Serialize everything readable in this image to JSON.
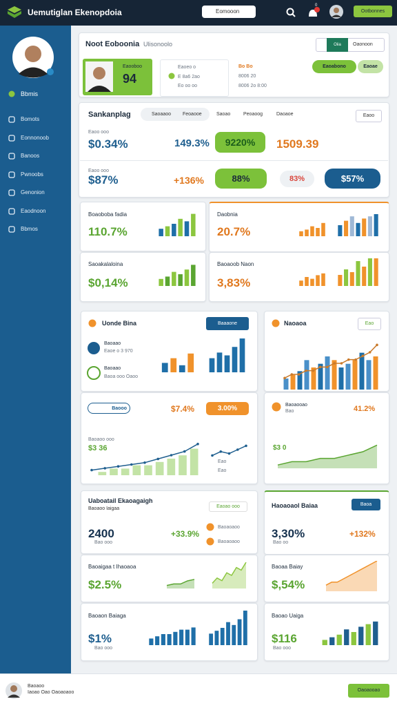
{
  "header": {
    "title": "Uemutiglan Ekenopdoia",
    "search": "Eomooon",
    "badge": "0",
    "button": "Ootbonnes"
  },
  "sidebar": {
    "status": "Bbmis",
    "menu": [
      "Bomots",
      "Eonnonoob",
      "Banoos",
      "Pwnoobs",
      "Genonion",
      "Eaodnoon",
      "Bbmos"
    ]
  },
  "overview": {
    "title": "Noot Eoboonia",
    "subtitle": "Ulisonoolo",
    "tabs": [
      "Oiia",
      "Oaonoon"
    ],
    "profile": {
      "name": "Eaooboo",
      "value": "94"
    },
    "info": [
      [
        "Eaoeo o",
        "E 8a6 2ao",
        "Eo oo oo"
      ],
      [
        "Bo Bo",
        "8006 20",
        "8006 2o 8:00"
      ]
    ],
    "actions": [
      "Eaoabono",
      "Eaoae"
    ]
  },
  "ranking": {
    "title": "Sankanplag",
    "tabs": [
      "Saoaaoo",
      "Feoaooe",
      "Saoao",
      "Peoaoog",
      "Daoaoe"
    ],
    "filter": "Eaoo",
    "captions": [
      "Eaoo ooo",
      "Eaoo ooo"
    ],
    "rows": [
      [
        "$0.34%",
        "149.3%",
        "9220%",
        "1509.39"
      ],
      [
        "$87%",
        "+136%",
        "88%",
        "83%",
        "$57%"
      ]
    ]
  },
  "metrics": [
    {
      "label": "Boaoboba fadia",
      "value": "110.7%"
    },
    {
      "label": "Daobnia",
      "value": "20.7%"
    },
    {
      "label": "Saoakalaloina",
      "value": "$0,14%"
    },
    {
      "label": "Baoaoob Naon",
      "value": "3,83%"
    }
  ],
  "panels": {
    "uonde": {
      "title": "Uonde Bina",
      "button": "Baaaone",
      "items": [
        {
          "name": "Baoaao",
          "detail": "Eaoe o 3 970"
        },
        {
          "name": "Baoaao",
          "detail": "Baoa ooo Oaoo"
        }
      ]
    },
    "naoaoa": {
      "title": "Naoaoa",
      "button": "Eao"
    },
    "trend": {
      "tag": "Baooo",
      "badges": [
        "$7.4%",
        "3.00%"
      ],
      "caption": "Baoaoo ooo",
      "value": "$3 36",
      "legend": [
        "Eao",
        "Eao"
      ]
    },
    "trend2": {
      "title": "Baoaooao",
      "detail": "Bao",
      "value": "41.2%",
      "value2": "$3 0"
    }
  },
  "summary": {
    "left": {
      "title": "Uaboatail Ekaoagaigh",
      "subtitle": "Baoaoo Iaigaa",
      "value": "2400",
      "change": "+33.9%",
      "note": "Bao ooo",
      "badge": "Eaoao ooo",
      "legend": [
        "Baoaoaoo",
        "Baoaoaoo"
      ],
      "rows": [
        {
          "label": "Baoaigaa t Ihaoaoa",
          "value": "$2.5%"
        },
        {
          "label": "Baoaon Baiaga",
          "value": "$1%",
          "note": "Bao ooo"
        }
      ]
    },
    "right": {
      "title": "Haoaoaol Baiaa",
      "button": "Baoa",
      "value": "3,30%",
      "change": "+132%",
      "note": "Bao oo",
      "rows": [
        {
          "label": "Baoaa Baiay",
          "value": "$,54%"
        },
        {
          "label": "Baoao Uaiga",
          "value": "$116",
          "note": "Bao ooo"
        }
      ]
    }
  },
  "footer": {
    "name": "Baoaoo",
    "role": "Iaoao Oao Oaoaoaoo",
    "button": "Oaoaooao"
  },
  "sparks": [
    {
      "kind": "bar",
      "ylim": [
        0,
        10
      ],
      "colors": [
        "#1f6fa8",
        "#8cc63f"
      ],
      "values": [
        3,
        4,
        5,
        7,
        6,
        9
      ]
    },
    {
      "kind": "bar",
      "ylim": [
        0,
        10
      ],
      "colors": [
        "#f0922b"
      ],
      "values": [
        3,
        4,
        6,
        5,
        8
      ]
    },
    {
      "kind": "bar",
      "ylim": [
        0,
        10
      ],
      "colors": [
        "#1f6fa8",
        "#f0922b",
        "#9fb9d6"
      ],
      "values": [
        5,
        7,
        9,
        6,
        8,
        9,
        10
      ]
    },
    {
      "kind": "bar",
      "ylim": [
        0,
        10
      ],
      "colors": [
        "#8cc63f",
        "#5aa531"
      ],
      "values": [
        3,
        4,
        6,
        5,
        7,
        9
      ]
    },
    {
      "kind": "bar",
      "ylim": [
        0,
        10
      ],
      "colors": [
        "#f0922b"
      ],
      "values": [
        3,
        5,
        4,
        6,
        7
      ]
    },
    {
      "kind": "bar",
      "ylim": [
        0,
        10
      ],
      "colors": [
        "#f0922b",
        "#8cc63f"
      ],
      "values": [
        4,
        6,
        5,
        9,
        7,
        10,
        10
      ]
    },
    {
      "kind": "bar",
      "ylim": [
        0,
        10
      ],
      "colors": [
        "#1f6fa8",
        "#f0922b"
      ],
      "values": [
        4,
        6,
        3,
        8
      ]
    },
    {
      "kind": "bar",
      "ylim": [
        0,
        12
      ],
      "colors": [
        "#1f6fa8"
      ],
      "values": [
        5,
        7,
        6,
        9,
        12
      ]
    },
    {
      "kind": "bar",
      "ylim": [
        0,
        12
      ],
      "colors": [
        "#4a90c9",
        "#f0922b",
        "#1f6fa8"
      ],
      "values": [
        3,
        4,
        5,
        8,
        6,
        7,
        9,
        8,
        6,
        7,
        8,
        10,
        8,
        9
      ]
    },
    {
      "kind": "line",
      "ylim": [
        0,
        12
      ],
      "color": "#c97a2b",
      "dots": true,
      "values": [
        2,
        3,
        3,
        4,
        4,
        5,
        5,
        6,
        6,
        7,
        7,
        8,
        9,
        11
      ]
    },
    {
      "kind": "bar",
      "ylim": [
        0,
        10
      ],
      "colors": [
        "#c3e3a6"
      ],
      "values": [
        1,
        2,
        2,
        3,
        3,
        4,
        5,
        6,
        8
      ]
    },
    {
      "kind": "line",
      "ylim": [
        0,
        10
      ],
      "color": "#1f5f8f",
      "dots": true,
      "values": [
        1,
        1.5,
        2,
        2.5,
        3,
        4,
        5,
        6,
        8
      ]
    },
    {
      "kind": "line",
      "ylim": [
        0,
        10
      ],
      "color": "#1f5f8f",
      "dots": true,
      "values": [
        2,
        4,
        3,
        5,
        7
      ]
    },
    {
      "kind": "area",
      "ylim": [
        0,
        10
      ],
      "color": "#5aa531",
      "values": [
        1,
        2,
        2,
        3,
        3,
        4,
        5,
        7
      ]
    },
    {
      "kind": "area",
      "ylim": [
        0,
        10
      ],
      "color": "#5aa531",
      "values": [
        2,
        3,
        3,
        5,
        6
      ]
    },
    {
      "kind": "area",
      "ylim": [
        0,
        10
      ],
      "color": "#8cc63f",
      "values": [
        2,
        4,
        3,
        6,
        5,
        8,
        7,
        10
      ]
    },
    {
      "kind": "area",
      "ylim": [
        0,
        10
      ],
      "color": "#f0922b",
      "values": [
        2,
        3,
        3,
        4,
        5,
        6,
        7,
        8,
        9,
        10
      ]
    },
    {
      "kind": "bar",
      "ylim": [
        0,
        10
      ],
      "colors": [
        "#1f6fa8"
      ],
      "values": [
        3,
        4,
        5,
        5,
        6,
        7,
        7,
        8
      ]
    },
    {
      "kind": "bar",
      "ylim": [
        0,
        12
      ],
      "colors": [
        "#1f6fa8"
      ],
      "values": [
        4,
        5,
        6,
        8,
        7,
        9,
        12
      ]
    },
    {
      "kind": "bar",
      "ylim": [
        0,
        10
      ],
      "colors": [
        "#8cc63f",
        "#1f5f8f"
      ],
      "values": [
        2,
        3,
        4,
        6,
        5,
        7,
        8,
        9
      ]
    }
  ]
}
